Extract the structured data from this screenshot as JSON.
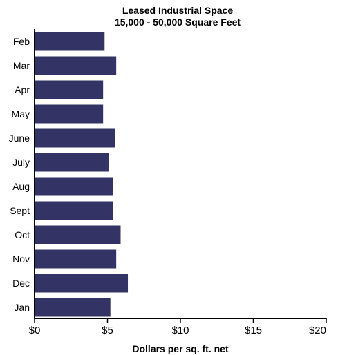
{
  "chart_data": {
    "type": "bar",
    "orientation": "horizontal",
    "title": "Leased Industrial Space",
    "subtitle": "15,000 - 50,000 Square Feet",
    "xlabel": "Dollars per sq. ft. net",
    "ylabel": "",
    "categories": [
      "Feb",
      "Mar",
      "Apr",
      "May",
      "June",
      "July",
      "Aug",
      "Sept",
      "Oct",
      "Nov",
      "Dec",
      "Jan"
    ],
    "values": [
      4.8,
      5.6,
      4.7,
      4.7,
      5.5,
      5.1,
      5.4,
      5.4,
      5.9,
      5.6,
      6.4,
      5.2
    ],
    "xlim": [
      0,
      20
    ],
    "xticks": [
      0,
      5,
      10,
      15,
      20
    ],
    "xtick_labels": [
      "$0",
      "$5",
      "$10",
      "$15",
      "$20"
    ],
    "grid": false,
    "bar_color": "#333366"
  }
}
